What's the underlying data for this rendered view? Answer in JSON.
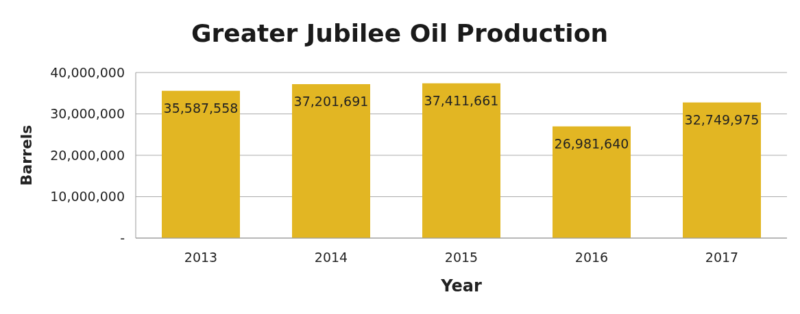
{
  "chart_data": {
    "type": "bar",
    "title": "Greater Jubilee Oil Production",
    "xlabel": "Year",
    "ylabel": "Barrels",
    "categories": [
      "2013",
      "2014",
      "2015",
      "2016",
      "2017"
    ],
    "values": [
      35587558,
      37201691,
      37411661,
      26981640,
      32749975
    ],
    "value_labels": [
      "35,587,558",
      "37,201,691",
      "37,411,661",
      "26,981,640",
      "32,749,975"
    ],
    "color": "#e2b623",
    "ylim": [
      0,
      40000000
    ],
    "yticks": [
      {
        "value": 0,
        "label": "-"
      },
      {
        "value": 10000000,
        "label": "10,000,000"
      },
      {
        "value": 20000000,
        "label": "20,000,000"
      },
      {
        "value": 30000000,
        "label": "30,000,000"
      },
      {
        "value": 40000000,
        "label": "40,000,000"
      }
    ],
    "grid": "y"
  }
}
